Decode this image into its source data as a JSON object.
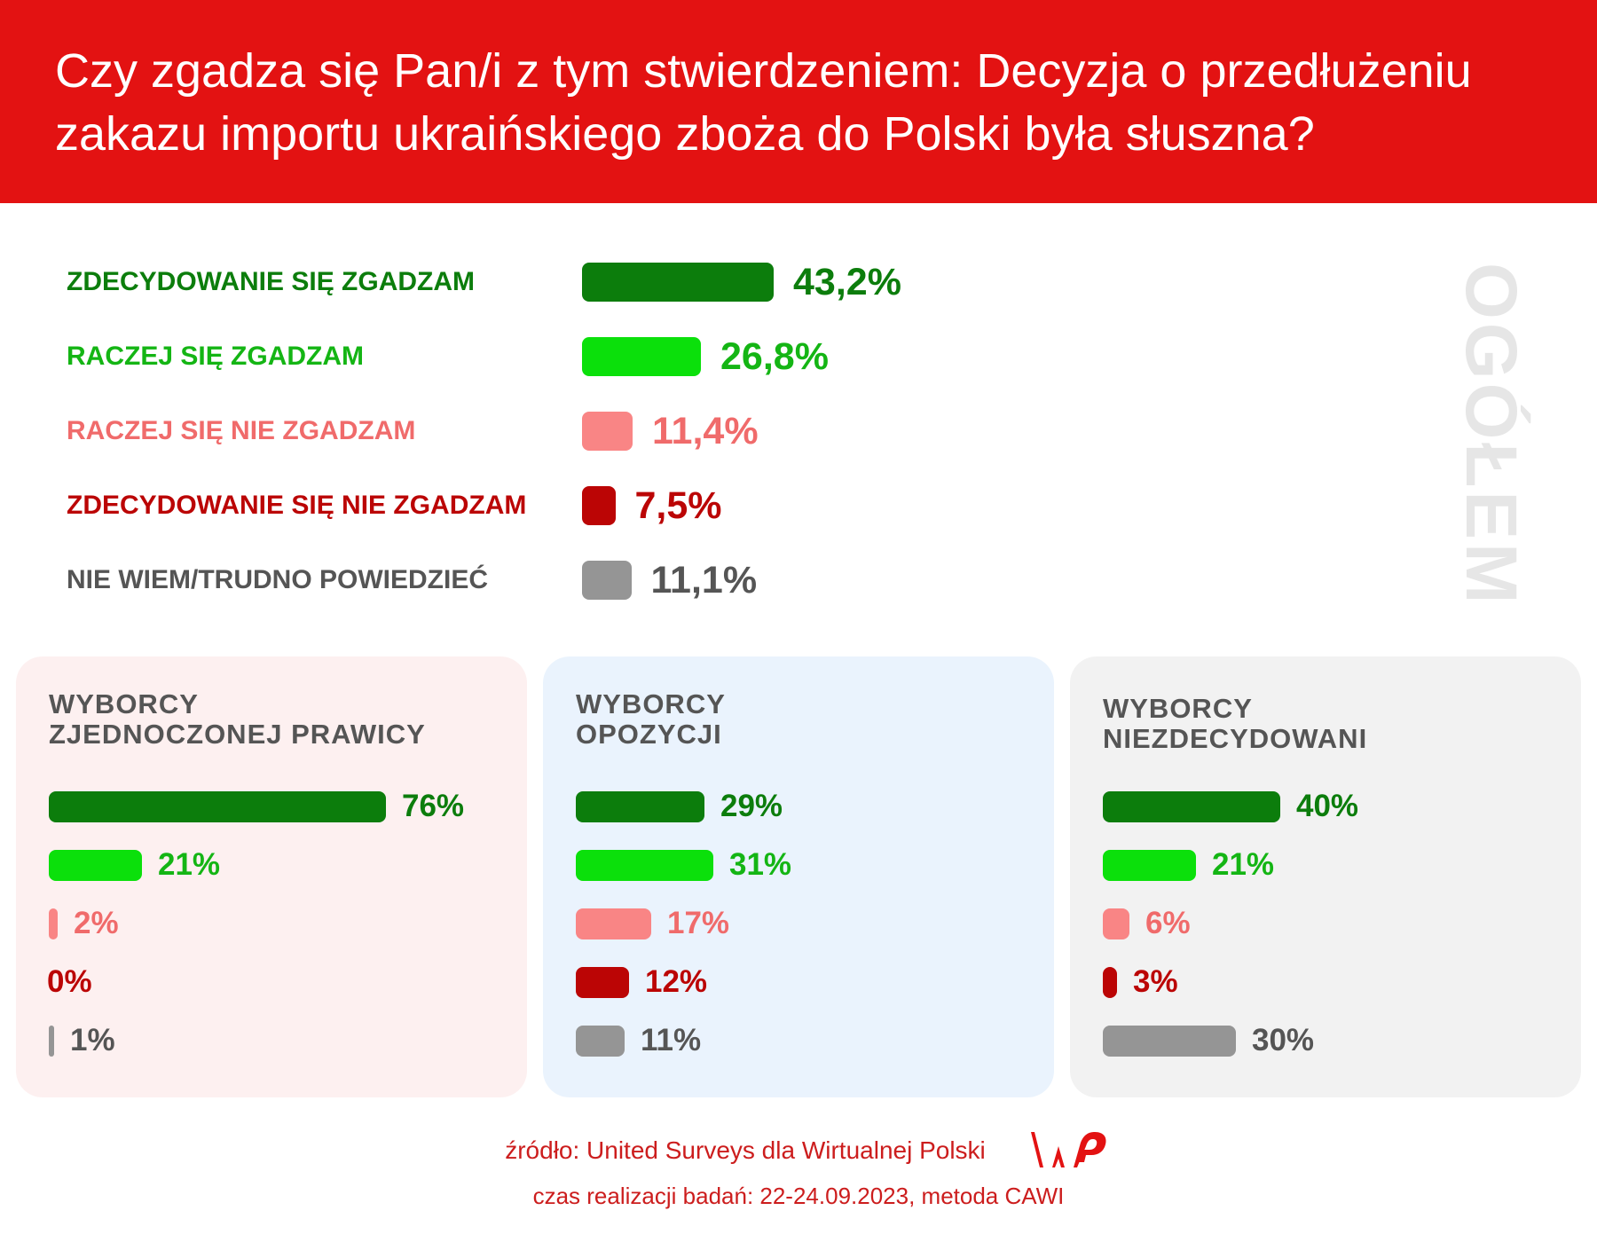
{
  "header": {
    "title": "Czy zgadza się Pan/i z tym stwierdzeniem: Decyzja o przedłużeniu zakazu importu ukraińskiego zboża do Polski była słuszna?"
  },
  "colors": {
    "header_bg": "#e31212",
    "strongly_agree": "#0c7d0c",
    "rather_agree": "#0be00b",
    "rather_disagree": "#f98585",
    "strongly_disagree": "#bb0505",
    "dont_know": "#959595",
    "panel_right_bg": "#fdf0f0",
    "panel_opposition_bg": "#eaf3fd",
    "panel_undecided_bg": "#f2f2f2"
  },
  "chart_data": [
    {
      "type": "bar",
      "orientation": "horizontal",
      "title": "",
      "side_label": "OGÓŁEM",
      "categories": [
        "ZDECYDOWANIE SIĘ ZGADZAM",
        "RACZEJ SIĘ ZGADZAM",
        "RACZEJ SIĘ NIE ZGADZAM",
        "ZDECYDOWANIE SIĘ NIE ZGADZAM",
        "NIE WIEM/TRUDNO POWIEDZIEĆ"
      ],
      "values": [
        43.2,
        26.8,
        11.4,
        7.5,
        11.1
      ],
      "value_labels": [
        "43,2%",
        "26,8%",
        "11,4%",
        "7,5%",
        "11,1%"
      ],
      "colors": [
        "#0c7d0c",
        "#0be00b",
        "#f98585",
        "#bb0505",
        "#959595"
      ]
    },
    {
      "type": "bar",
      "orientation": "horizontal",
      "title_lines": [
        "WYBORCY",
        "ZJEDNOCZONEJ PRAWICY"
      ],
      "values": [
        76,
        21,
        2,
        0,
        1
      ],
      "value_labels": [
        "76%",
        "21%",
        "2%",
        "0%",
        "1%"
      ],
      "colors": [
        "#0c7d0c",
        "#0be00b",
        "#f98585",
        "#bb0505",
        "#959595"
      ]
    },
    {
      "type": "bar",
      "orientation": "horizontal",
      "title_lines": [
        "WYBORCY",
        "OPOZYCJI"
      ],
      "values": [
        29,
        31,
        17,
        12,
        11
      ],
      "value_labels": [
        "29%",
        "31%",
        "17%",
        "12%",
        "11%"
      ],
      "colors": [
        "#0c7d0c",
        "#0be00b",
        "#f98585",
        "#bb0505",
        "#959595"
      ]
    },
    {
      "type": "bar",
      "orientation": "horizontal",
      "title_lines": [
        "WYBORCY",
        "NIEZDECYDOWANI"
      ],
      "values": [
        40,
        21,
        6,
        3,
        30
      ],
      "value_labels": [
        "40%",
        "21%",
        "6%",
        "3%",
        "30%"
      ],
      "colors": [
        "#0c7d0c",
        "#0be00b",
        "#f98585",
        "#bb0505",
        "#959595"
      ]
    }
  ],
  "footer": {
    "source": "źródło: United Surveys dla Wirtualnej Polski",
    "logo_text": "WP",
    "date": "czas realizacji badań: 22-24.09.2023, metoda CAWI"
  }
}
